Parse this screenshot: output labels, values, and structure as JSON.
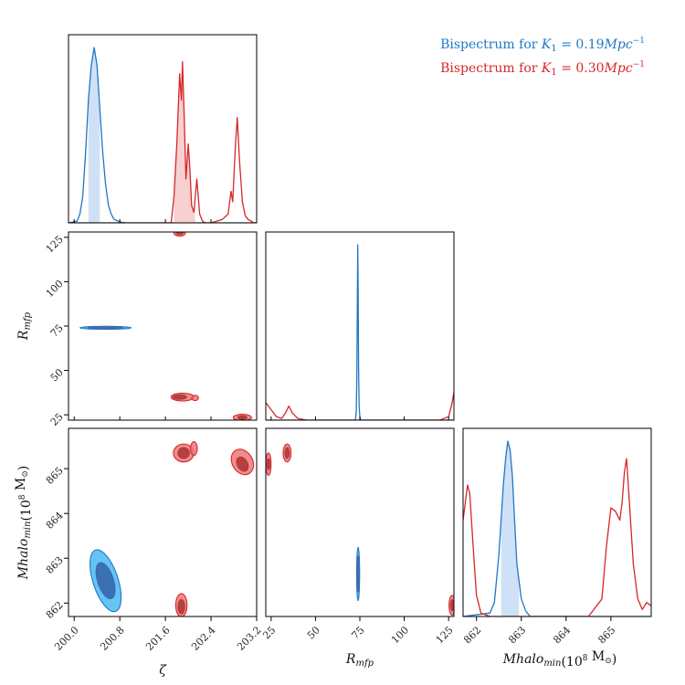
{
  "chart_data": {
    "type": "corner",
    "parameters": [
      {
        "key": "zeta",
        "label": "ζ",
        "range": [
          199.9,
          203.2
        ],
        "ticks": [
          200.0,
          200.8,
          201.6,
          202.4,
          203.2
        ],
        "tick_labels": [
          "200.0",
          "200.8",
          "201.6",
          "202.4",
          "203.2"
        ]
      },
      {
        "key": "rmfp",
        "label": "R",
        "label_sub": "mfp",
        "range": [
          22,
          128
        ],
        "ticks": [
          25,
          50,
          75,
          100,
          125
        ],
        "tick_labels": [
          "25",
          "50",
          "75",
          "100",
          "125"
        ]
      },
      {
        "key": "mhalo",
        "label": "Mhalo",
        "label_sub": "min",
        "label_unit": "(10",
        "label_unit_sup": "8",
        "label_unit_tail": " M",
        "label_unit_sub": "⊙",
        "label_unit_close": ")",
        "range": [
          861.7,
          865.9
        ],
        "ticks": [
          862,
          863,
          864,
          865
        ],
        "tick_labels": [
          "862",
          "863",
          "864",
          "865"
        ]
      }
    ],
    "legend_placement": "top-right",
    "series": [
      {
        "name": "Bispectrum for K1 = 0.19Mpc−1",
        "name_main": "Bispectrum for ",
        "name_k": "K",
        "name_k_sub": "1",
        "name_value": " = 0.19",
        "name_unit": "Mpc",
        "name_unit_sup": "−1",
        "color": "#1f77c4",
        "fill": "#cfe1f6",
        "contour_inner": "#3a6bb0",
        "contour_outer": "#4ab8f5",
        "marginals": {
          "zeta": {
            "x": [
              199.9,
              200.05,
              200.1,
              200.15,
              200.2,
              200.25,
              200.3,
              200.35,
              200.4,
              200.45,
              200.5,
              200.55,
              200.6,
              200.65,
              200.7,
              200.8,
              200.9,
              201.0,
              203.2
            ],
            "y": [
              0,
              0.01,
              0.05,
              0.15,
              0.4,
              0.7,
              0.9,
              1.0,
              0.9,
              0.65,
              0.4,
              0.22,
              0.1,
              0.05,
              0.02,
              0.005,
              0,
              0,
              0
            ],
            "shade": [
              200.25,
              200.45
            ]
          },
          "rmfp": {
            "x": [
              22,
              72.5,
              73.0,
              73.3,
              73.6,
              73.8,
              74.0,
              74.3,
              74.6,
              75.0,
              75.5,
              128
            ],
            "y": [
              0,
              0,
              0.05,
              0.25,
              0.7,
              1.0,
              0.75,
              0.3,
              0.08,
              0.02,
              0,
              0
            ]
          },
          "mhalo": {
            "x": [
              861.7,
              862.3,
              862.4,
              862.5,
              862.6,
              862.65,
              862.7,
              862.75,
              862.8,
              862.85,
              862.9,
              863.0,
              863.1,
              863.2,
              865.9
            ],
            "y": [
              0,
              0.02,
              0.08,
              0.35,
              0.75,
              0.9,
              1.0,
              0.95,
              0.8,
              0.55,
              0.3,
              0.1,
              0.03,
              0,
              0
            ],
            "shade": [
              862.55,
              862.95
            ]
          }
        },
        "contours": {
          "rmfp_vs_zeta": [
            {
              "level": "outer",
              "cx": 200.55,
              "cy": 74,
              "rx": 0.45,
              "ry": 0.8,
              "angle": 0
            },
            {
              "level": "inner",
              "cx": 200.55,
              "cy": 74,
              "rx": 0.3,
              "ry": 0.5,
              "angle": 0
            }
          ],
          "mhalo_vs_zeta": [
            {
              "level": "outer",
              "cx": 200.55,
              "cy": 862.5,
              "rx": 0.22,
              "ry": 0.72,
              "angle": -18
            },
            {
              "level": "inner",
              "cx": 200.55,
              "cy": 862.5,
              "rx": 0.14,
              "ry": 0.42,
              "angle": -18
            }
          ],
          "mhalo_vs_rmfp": [
            {
              "level": "outer",
              "cx": 74,
              "cy": 862.65,
              "rx": 0.8,
              "ry": 0.6,
              "angle": 0
            },
            {
              "level": "inner",
              "cx": 74,
              "cy": 862.65,
              "rx": 0.5,
              "ry": 0.4,
              "angle": 0
            }
          ]
        }
      },
      {
        "name": "Bispectrum for K1 = 0.30Mpc−1",
        "name_main": "Bispectrum for ",
        "name_k": "K",
        "name_k_sub": "1",
        "name_value": " = 0.30",
        "name_unit": "Mpc",
        "name_unit_sup": "−1",
        "color": "#d62728",
        "fill": "#f7d0d0",
        "contour_inner": "#b23b3b",
        "contour_outer": "#f07878",
        "marginals": {
          "zeta": {
            "x": [
              199.9,
              201.7,
              201.75,
              201.8,
              201.85,
              201.88,
              201.9,
              201.93,
              201.96,
              202.0,
              202.03,
              202.06,
              202.1,
              202.15,
              202.2,
              202.25,
              202.3,
              202.4,
              202.5,
              202.6,
              202.7,
              202.75,
              202.78,
              202.8,
              202.83,
              202.86,
              202.9,
              202.95,
              203.0,
              203.05,
              203.1,
              203.15,
              203.2
            ],
            "y": [
              0,
              0,
              0.15,
              0.45,
              0.85,
              0.7,
              0.92,
              0.6,
              0.25,
              0.45,
              0.3,
              0.1,
              0.06,
              0.25,
              0.05,
              0.01,
              0,
              0,
              0.01,
              0.02,
              0.05,
              0.18,
              0.12,
              0.25,
              0.45,
              0.6,
              0.35,
              0.12,
              0.04,
              0.02,
              0.01,
              0,
              0
            ],
            "shade": [
              201.75,
              202.12
            ]
          },
          "rmfp": {
            "x": [
              22,
              25,
              28,
              31,
              33,
              35,
              37,
              40,
              45,
              60,
              100,
              120,
              125,
              127,
              128
            ],
            "y": [
              0.1,
              0.06,
              0.02,
              0.01,
              0.04,
              0.08,
              0.04,
              0.01,
              0,
              0,
              0,
              0,
              0.02,
              0.1,
              0.16
            ]
          },
          "mhalo": {
            "x": [
              861.7,
              861.75,
              861.8,
              861.85,
              861.9,
              861.95,
              862.0,
              862.1,
              862.3,
              862.5,
              863.5,
              864.5,
              864.8,
              864.9,
              865.0,
              865.1,
              865.2,
              865.25,
              865.3,
              865.35,
              865.4,
              865.5,
              865.6,
              865.7,
              865.8,
              865.9
            ],
            "y": [
              0.55,
              0.65,
              0.75,
              0.7,
              0.5,
              0.3,
              0.12,
              0.02,
              0,
              0,
              0,
              0,
              0.1,
              0.4,
              0.62,
              0.6,
              0.55,
              0.65,
              0.82,
              0.9,
              0.7,
              0.3,
              0.1,
              0.04,
              0.08,
              0.06
            ]
          }
        },
        "contours": {
          "rmfp_vs_zeta": [
            {
              "level": "outer",
              "cx": 201.85,
              "cy": 127.5,
              "rx": 0.1,
              "ry": 1.8,
              "angle": 0
            },
            {
              "level": "inner",
              "cx": 201.85,
              "cy": 127.5,
              "rx": 0.06,
              "ry": 1.0,
              "angle": 0
            },
            {
              "level": "outer",
              "cx": 201.9,
              "cy": 35,
              "rx": 0.2,
              "ry": 2.2,
              "angle": 0
            },
            {
              "level": "inner",
              "cx": 201.85,
              "cy": 35,
              "rx": 0.12,
              "ry": 1.3,
              "angle": 0
            },
            {
              "level": "outer",
              "cx": 202.12,
              "cy": 34.5,
              "rx": 0.06,
              "ry": 1.5,
              "angle": 0
            },
            {
              "level": "outer",
              "cx": 202.95,
              "cy": 23.5,
              "rx": 0.16,
              "ry": 1.8,
              "angle": 0
            },
            {
              "level": "inner",
              "cx": 202.95,
              "cy": 23.5,
              "rx": 0.08,
              "ry": 1.0,
              "angle": 0
            }
          ],
          "mhalo_vs_zeta": [
            {
              "level": "outer",
              "cx": 201.92,
              "cy": 865.35,
              "rx": 0.18,
              "ry": 0.2,
              "angle": 0
            },
            {
              "level": "inner",
              "cx": 201.92,
              "cy": 865.35,
              "rx": 0.1,
              "ry": 0.12,
              "angle": 0
            },
            {
              "level": "outer",
              "cx": 202.1,
              "cy": 865.45,
              "rx": 0.06,
              "ry": 0.15,
              "angle": 0
            },
            {
              "level": "outer",
              "cx": 202.95,
              "cy": 865.15,
              "rx": 0.18,
              "ry": 0.3,
              "angle": -30
            },
            {
              "level": "inner",
              "cx": 202.95,
              "cy": 865.1,
              "rx": 0.09,
              "ry": 0.17,
              "angle": -30
            },
            {
              "level": "outer",
              "cx": 201.88,
              "cy": 861.95,
              "rx": 0.1,
              "ry": 0.26,
              "angle": 0
            },
            {
              "level": "inner",
              "cx": 201.88,
              "cy": 861.92,
              "rx": 0.06,
              "ry": 0.16,
              "angle": 0
            }
          ],
          "mhalo_vs_rmfp": [
            {
              "level": "outer",
              "cx": 23.5,
              "cy": 865.1,
              "rx": 1.5,
              "ry": 0.25,
              "angle": 0
            },
            {
              "level": "inner",
              "cx": 23.5,
              "cy": 865.1,
              "rx": 0.8,
              "ry": 0.12,
              "angle": 0
            },
            {
              "level": "outer",
              "cx": 34,
              "cy": 865.35,
              "rx": 2.2,
              "ry": 0.2,
              "angle": 0
            },
            {
              "level": "inner",
              "cx": 34,
              "cy": 865.35,
              "rx": 1.2,
              "ry": 0.12,
              "angle": 0
            },
            {
              "level": "outer",
              "cx": 127,
              "cy": 861.95,
              "rx": 1.8,
              "ry": 0.22,
              "angle": 0
            },
            {
              "level": "inner",
              "cx": 127,
              "cy": 861.95,
              "rx": 0.9,
              "ry": 0.12,
              "angle": 0
            }
          ]
        }
      }
    ]
  }
}
